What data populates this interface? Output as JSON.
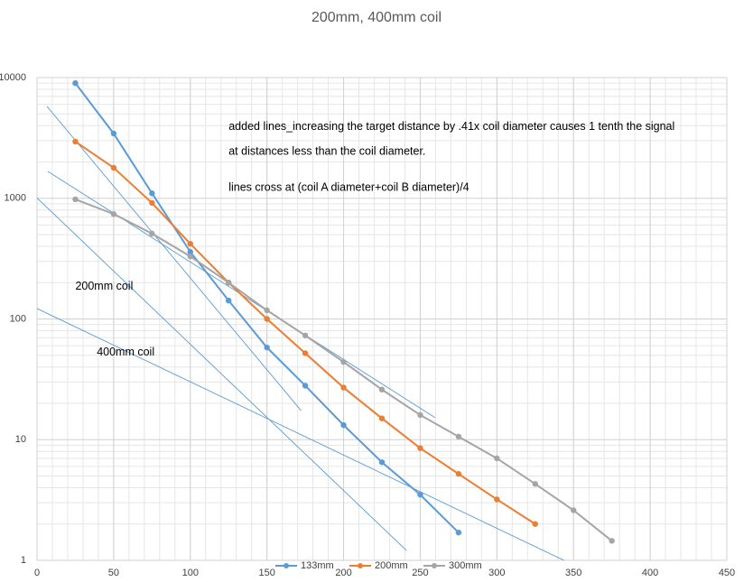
{
  "chart_data": {
    "type": "line",
    "title": "200mm, 400mm coil",
    "x": [
      25,
      50,
      75,
      100,
      125,
      150,
      175,
      200,
      225,
      250,
      275,
      300,
      325,
      350,
      375
    ],
    "series": [
      {
        "name": "133mm",
        "color": "#5b9bd5",
        "values": [
          9000,
          3440,
          1100,
          360,
          142,
          58,
          28,
          13.2,
          6.5,
          3.5,
          1.7,
          null,
          null,
          null,
          null
        ]
      },
      {
        "name": "200mm",
        "color": "#ed7d31",
        "values": [
          2950,
          1790,
          915,
          420,
          200,
          100,
          52,
          27,
          15,
          8.5,
          5.2,
          3.2,
          2.0,
          null,
          null
        ]
      },
      {
        "name": "300mm",
        "color": "#a5a5a5",
        "values": [
          980,
          740,
          510,
          330,
          200,
          118,
          73,
          44,
          26,
          16,
          10.6,
          7,
          4.3,
          2.6,
          1.45
        ]
      }
    ],
    "reference_lines": [
      {
        "x": [
          6.5,
          172.3
        ],
        "y": [
          5770,
          17.4
        ],
        "color": "#5b9bd5"
      },
      {
        "x": [
          7.1,
          259.7
        ],
        "y": [
          1670,
          15.2
        ],
        "color": "#5b9bd5"
      },
      {
        "x": [
          -19.4,
          240.9
        ],
        "y": [
          1730,
          1.21
        ],
        "color": "#5b9bd5"
      },
      {
        "x": [
          0,
          363.4
        ],
        "y": [
          122,
          0.76
        ],
        "color": "#5b9bd5"
      }
    ],
    "annotations": [
      {
        "text": "added lines_increasing the target distance by .41x coil diameter causes 1 tenth the signal",
        "x": 125,
        "y": 3700
      },
      {
        "text": "at distances less than the coil diameter.",
        "x": 125,
        "y": 2300
      },
      {
        "text": "lines cross at (coil A diameter+coil B diameter)/4",
        "x": 125,
        "y": 1150
      },
      {
        "text": "200mm coil",
        "x": 25,
        "y": 175
      },
      {
        "text": "400mm coil",
        "x": 39,
        "y": 50
      }
    ],
    "xlim": [
      0,
      450
    ],
    "xticks": [
      0,
      50,
      100,
      150,
      200,
      250,
      300,
      350,
      400,
      450
    ],
    "ylim": [
      1,
      10000
    ],
    "yticks": [
      1,
      10,
      100,
      1000,
      10000
    ],
    "log_y": true,
    "grid": true,
    "legend": "bottom"
  }
}
